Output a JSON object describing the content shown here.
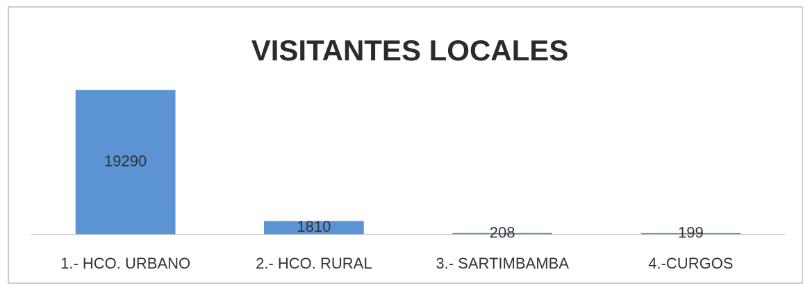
{
  "chart_data": {
    "type": "bar",
    "title": "VISITANTES LOCALES",
    "categories": [
      "1.- HCO. URBANO",
      "2.- HCO. RURAL",
      "3.- SARTIMBAMBA",
      "4.-CURGOS"
    ],
    "values": [
      19290,
      1810,
      208,
      199
    ],
    "color": "#5b93d3",
    "ylim": [
      0,
      20000
    ],
    "grid": false
  }
}
